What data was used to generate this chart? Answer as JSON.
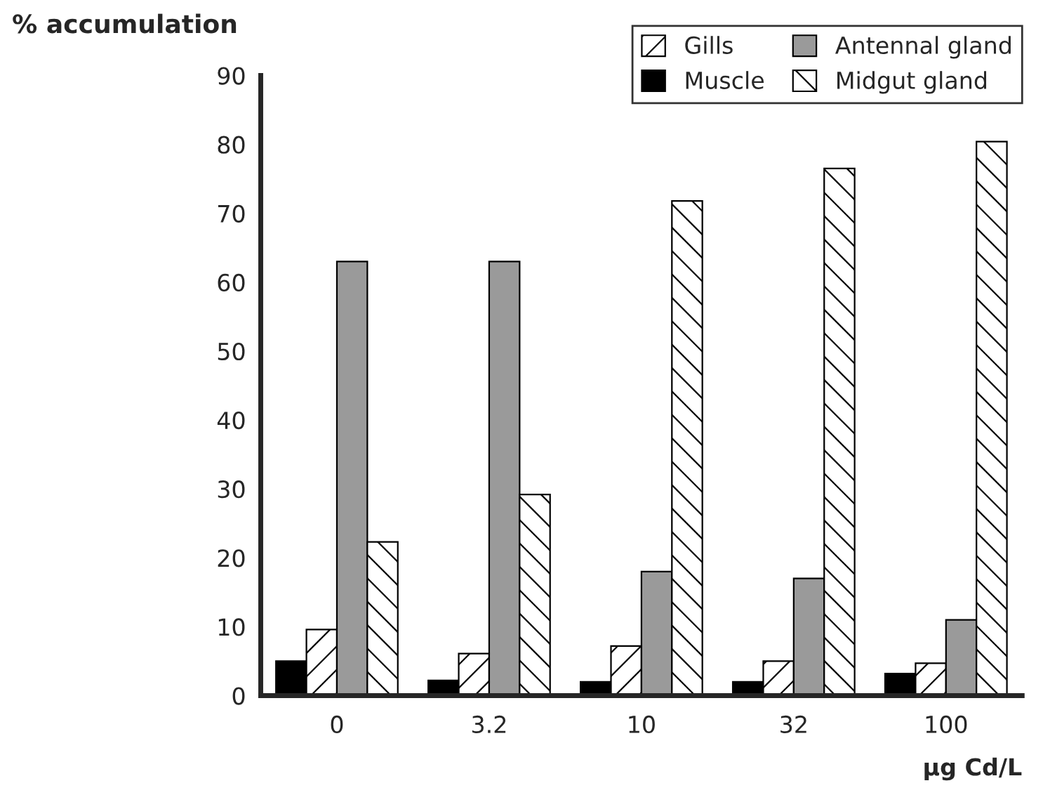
{
  "chart_data": {
    "type": "bar",
    "ylabel": "% accumulation",
    "xlabel": "µg Cd/L",
    "categories": [
      "0",
      "3.2",
      "10",
      "32",
      "100"
    ],
    "series": [
      {
        "name": "Muscle",
        "color": "#000000",
        "values": [
          5,
          2.2,
          2,
          2,
          3.2
        ]
      },
      {
        "name": "Gills",
        "color": "#000000",
        "values": [
          9.6,
          6.1,
          7.2,
          5,
          4.7
        ]
      },
      {
        "name": "Antennal gland",
        "color": "#9a9a9a",
        "values": [
          63,
          63,
          18,
          17,
          11
        ]
      },
      {
        "name": "Midgut gland",
        "color": "#000000",
        "values": [
          22.3,
          29.2,
          71.8,
          76.5,
          80.4
        ]
      }
    ],
    "ylim": [
      0,
      90
    ],
    "yticks": [
      0,
      10,
      20,
      30,
      40,
      50,
      60,
      70,
      80,
      90
    ],
    "grid": false,
    "legend": "top right"
  }
}
